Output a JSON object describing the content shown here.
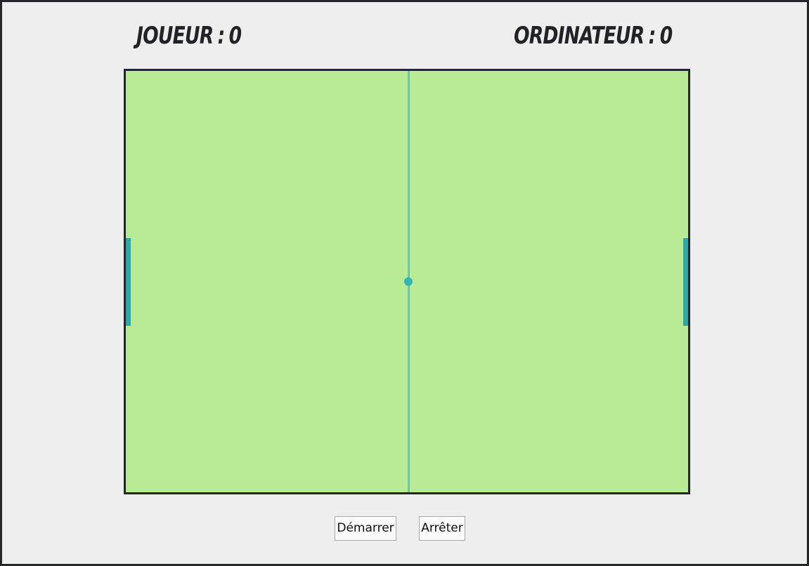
{
  "scoreboard": {
    "player_label": "JOUEUR",
    "player_score": "0",
    "computer_label": "ORDINATEUR",
    "computer_score": "0",
    "separator": ":"
  },
  "controls": {
    "start_label": "Démarrer",
    "stop_label": "Arrêter"
  },
  "colors": {
    "background": "#eeeeee",
    "field": "#b9ea96",
    "border": "#25262a",
    "paddle": "#2ea9a9",
    "ball": "#33b4b1",
    "midline": "#6ec7a3"
  }
}
